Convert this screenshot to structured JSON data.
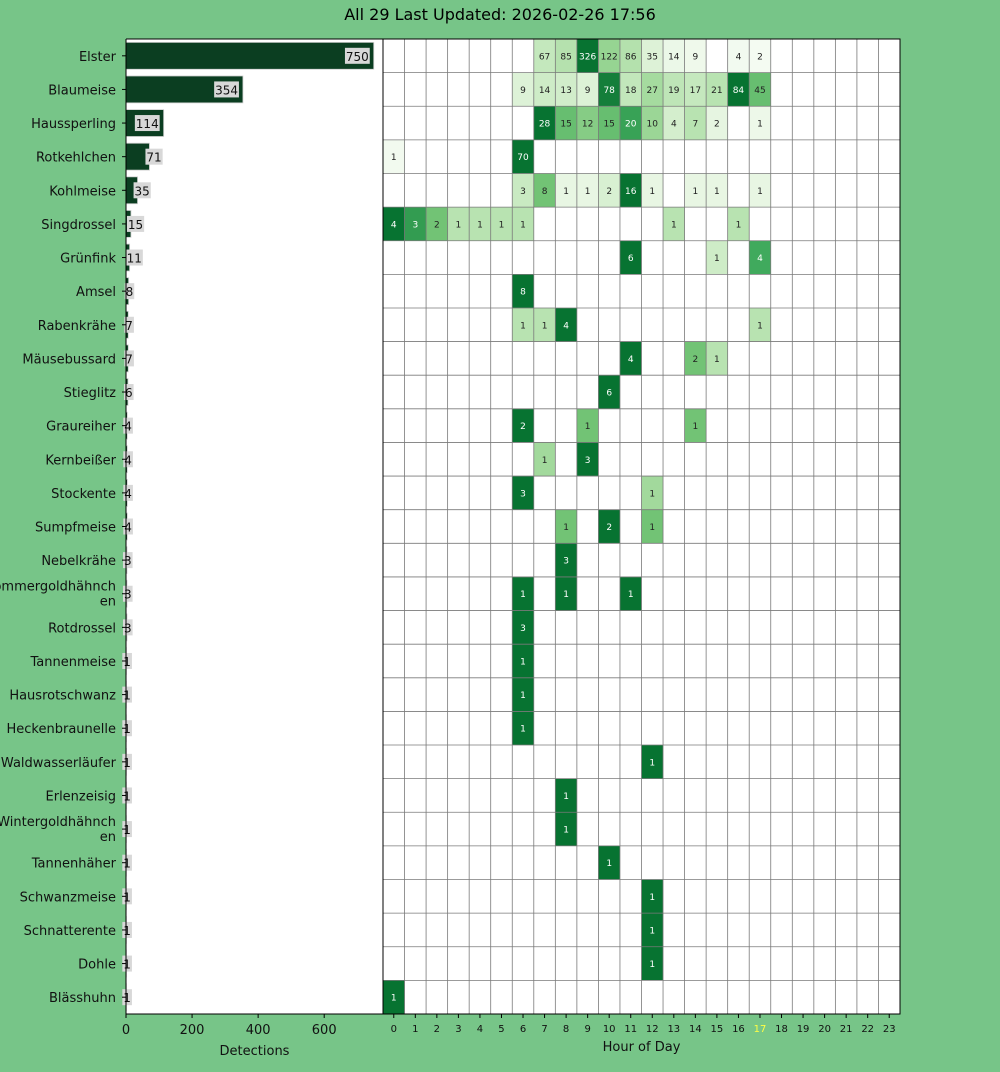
{
  "title": "All 29 Last Updated: 2026-02-26 17:56",
  "colors": {
    "figure_bg": "#77c588",
    "bar_fill": "#0b3e21",
    "label_box": "#d8d8d8",
    "grid_line": "#7a7a7a",
    "current_hour": "#ffff44"
  },
  "chart_data": [
    {
      "type": "bar",
      "orientation": "horizontal",
      "categories": [
        "Elster",
        "Blaumeise",
        "Haussperling",
        "Rotkehlchen",
        "Kohlmeise",
        "Singdrossel",
        "Grünfink",
        "Amsel",
        "Rabenkrähe",
        "Mäusebussard",
        "Stieglitz",
        "Graureiher",
        "Kernbeißer",
        "Stockente",
        "Sumpfmeise",
        "Nebelkrähe",
        "Sommergoldhähnchen",
        "Rotdrossel",
        "Tannenmeise",
        "Hausrotschwanz",
        "Heckenbraunelle",
        "Waldwasserläufer",
        "Erlenzeisig",
        "Wintergoldhähnchen",
        "Tannenhäher",
        "Schwanzmeise",
        "Schnatterente",
        "Dohle",
        "Blässhuhn"
      ],
      "category_labels": [
        "Elster",
        "Blaumeise",
        "Haussperling",
        "Rotkehlchen",
        "Kohlmeise",
        "Singdrossel",
        "Grünfink",
        "Amsel",
        "Rabenkrähe",
        "Mäusebussard",
        "Stieglitz",
        "Graureiher",
        "Kernbeißer",
        "Stockente",
        "Sumpfmeise",
        "Nebelkrähe",
        "Sommergoldhähnch\nen",
        "Rotdrossel",
        "Tannenmeise",
        "Hausrotschwanz",
        "Heckenbraunelle",
        "Waldwasserläufer",
        "Erlenzeisig",
        "Wintergoldhähnch\nen",
        "Tannenhäher",
        "Schwanzmeise",
        "Schnatterente",
        "Dohle",
        "Blässhuhn"
      ],
      "values": [
        750,
        354,
        114,
        71,
        35,
        15,
        11,
        8,
        7,
        7,
        6,
        4,
        4,
        4,
        4,
        3,
        3,
        3,
        1,
        1,
        1,
        1,
        1,
        1,
        1,
        1,
        1,
        1,
        1
      ],
      "xlabel": "Detections",
      "xlim": [
        0,
        778
      ],
      "xticks": [
        0,
        200,
        400,
        600
      ],
      "grid": false
    },
    {
      "type": "heatmap",
      "xlabel": "Hour of Day",
      "hours": [
        0,
        1,
        2,
        3,
        4,
        5,
        6,
        7,
        8,
        9,
        10,
        11,
        12,
        13,
        14,
        15,
        16,
        17,
        18,
        19,
        20,
        21,
        22,
        23
      ],
      "highlight_hour": 17,
      "rows": [
        {
          "species": "Elster",
          "counts": {
            "7": 67,
            "8": 85,
            "9": 326,
            "10": 122,
            "11": 86,
            "12": 35,
            "13": 14,
            "14": 9,
            "16": 4,
            "17": 2
          }
        },
        {
          "species": "Blaumeise",
          "counts": {
            "6": 9,
            "7": 14,
            "8": 13,
            "9": 9,
            "10": 78,
            "11": 18,
            "12": 27,
            "13": 19,
            "14": 17,
            "15": 21,
            "16": 84,
            "17": 45
          }
        },
        {
          "species": "Haussperling",
          "counts": {
            "7": 28,
            "8": 15,
            "9": 12,
            "10": 15,
            "11": 20,
            "12": 10,
            "13": 4,
            "14": 7,
            "15": 2,
            "17": 1
          }
        },
        {
          "species": "Rotkehlchen",
          "counts": {
            "0": 1,
            "6": 70
          }
        },
        {
          "species": "Kohlmeise",
          "counts": {
            "6": 3,
            "7": 8,
            "8": 1,
            "9": 1,
            "10": 2,
            "11": 16,
            "12": 1,
            "14": 1,
            "15": 1,
            "17": 1
          }
        },
        {
          "species": "Singdrossel",
          "counts": {
            "0": 4,
            "1": 3,
            "2": 2,
            "3": 1,
            "4": 1,
            "5": 1,
            "6": 1,
            "13": 1,
            "16": 1
          }
        },
        {
          "species": "Grünfink",
          "counts": {
            "11": 6,
            "15": 1,
            "17": 4
          }
        },
        {
          "species": "Amsel",
          "counts": {
            "6": 8
          }
        },
        {
          "species": "Rabenkrähe",
          "counts": {
            "6": 1,
            "7": 1,
            "8": 4,
            "17": 1
          }
        },
        {
          "species": "Mäusebussard",
          "counts": {
            "11": 4,
            "14": 2,
            "15": 1
          }
        },
        {
          "species": "Stieglitz",
          "counts": {
            "10": 6
          }
        },
        {
          "species": "Graureiher",
          "counts": {
            "6": 2,
            "9": 1,
            "14": 1
          }
        },
        {
          "species": "Kernbeißer",
          "counts": {
            "7": 1,
            "9": 3
          }
        },
        {
          "species": "Stockente",
          "counts": {
            "6": 3,
            "12": 1
          }
        },
        {
          "species": "Sumpfmeise",
          "counts": {
            "8": 1,
            "10": 2,
            "12": 1
          }
        },
        {
          "species": "Nebelkrähe",
          "counts": {
            "8": 3
          }
        },
        {
          "species": "Sommergoldhähnchen",
          "counts": {
            "6": 1,
            "8": 1,
            "11": 1
          }
        },
        {
          "species": "Rotdrossel",
          "counts": {
            "6": 3
          }
        },
        {
          "species": "Tannenmeise",
          "counts": {
            "6": 1
          }
        },
        {
          "species": "Hausrotschwanz",
          "counts": {
            "6": 1
          }
        },
        {
          "species": "Heckenbraunelle",
          "counts": {
            "6": 1
          }
        },
        {
          "species": "Waldwasserläufer",
          "counts": {
            "12": 1
          }
        },
        {
          "species": "Erlenzeisig",
          "counts": {
            "8": 1
          }
        },
        {
          "species": "Wintergoldhähnchen",
          "counts": {
            "8": 1
          }
        },
        {
          "species": "Tannenhäher",
          "counts": {
            "10": 1
          }
        },
        {
          "species": "Schwanzmeise",
          "counts": {
            "12": 1
          }
        },
        {
          "species": "Schnatterente",
          "counts": {
            "12": 1
          }
        },
        {
          "species": "Dohle",
          "counts": {
            "12": 1
          }
        },
        {
          "species": "Blässhuhn",
          "counts": {
            "0": 1
          }
        }
      ],
      "grid": true
    }
  ]
}
